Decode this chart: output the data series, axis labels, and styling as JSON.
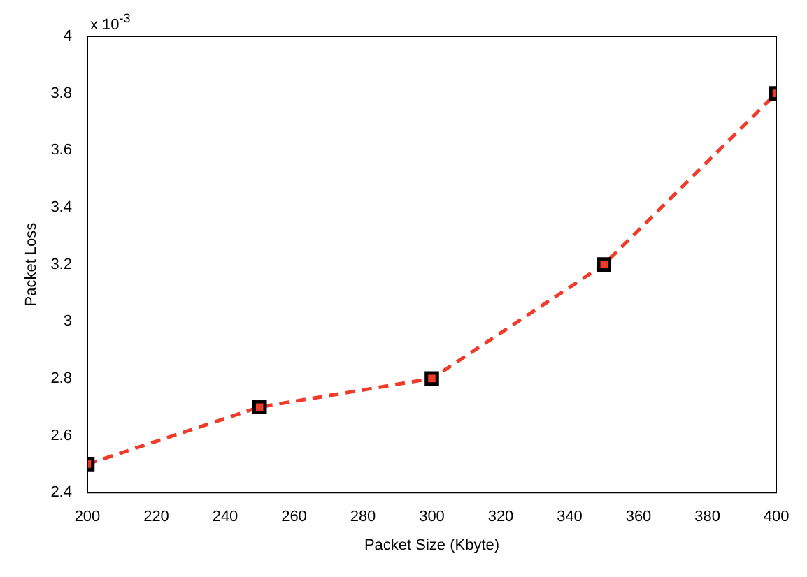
{
  "chart_data": {
    "type": "line",
    "xlabel": "Packet Size (Kbyte)",
    "ylabel": "Packet Loss",
    "annotations": [
      "x 10$^{-3}$"
    ],
    "x": [
      200,
      250,
      300,
      350,
      400
    ],
    "series": [
      {
        "color": "#f03a2a",
        "values": [
          2.5,
          2.7,
          2.8,
          3.2,
          3.8
        ]
      }
    ],
    "xlim": [
      200,
      400
    ],
    "xticks": [
      200,
      220,
      240,
      260,
      280,
      300,
      320,
      340,
      360,
      380,
      400
    ],
    "ylim": [
      2.4,
      4
    ],
    "yticks": [
      2.4,
      2.6,
      2.8,
      3,
      3.2,
      3.4,
      3.6,
      3.8,
      4
    ],
    "grid": false,
    "legend": false,
    "marker": "square",
    "line_style": "dashed"
  }
}
